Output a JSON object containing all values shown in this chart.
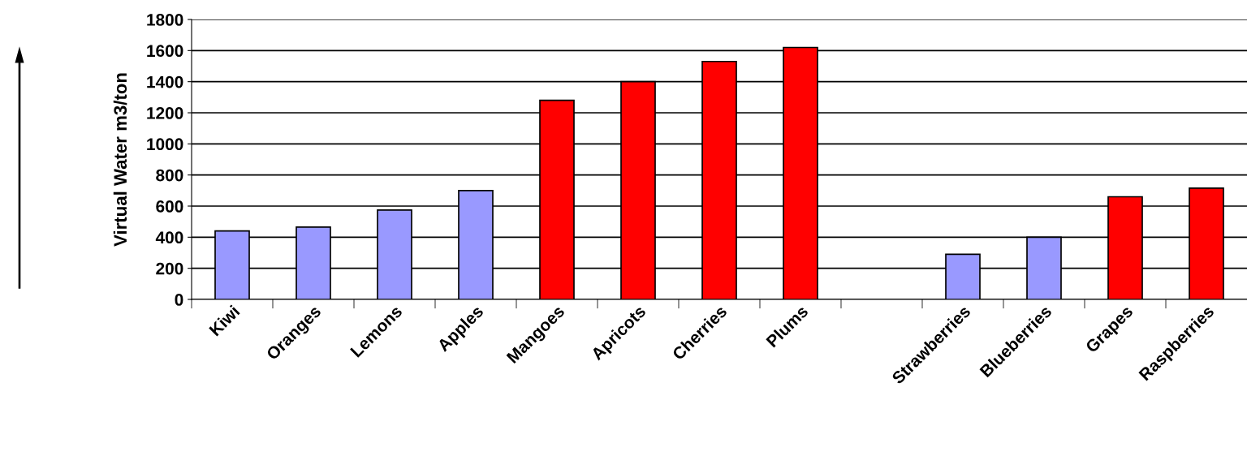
{
  "chart_data": {
    "type": "bar",
    "ylabel": "Virtual Water m3/ton",
    "categories": [
      "Kiwi",
      "Oranges",
      "Lemons",
      "Apples",
      "Mangoes",
      "Apricots",
      "Cherries",
      "Plums",
      null,
      "Strawberries",
      "Blueberries",
      "Grapes",
      "Raspberries"
    ],
    "values": [
      440,
      465,
      575,
      700,
      1280,
      1400,
      1530,
      1620,
      null,
      290,
      400,
      660,
      715
    ],
    "colors": [
      "#9999ff",
      "#9999ff",
      "#9999ff",
      "#9999ff",
      "#ff0000",
      "#ff0000",
      "#ff0000",
      "#ff0000",
      null,
      "#9999ff",
      "#9999ff",
      "#ff0000",
      "#ff0000"
    ],
    "ylim": [
      0,
      1800
    ],
    "yticks": [
      0,
      200,
      400,
      600,
      800,
      1000,
      1200,
      1400,
      1600,
      1800
    ],
    "grid": "y"
  }
}
